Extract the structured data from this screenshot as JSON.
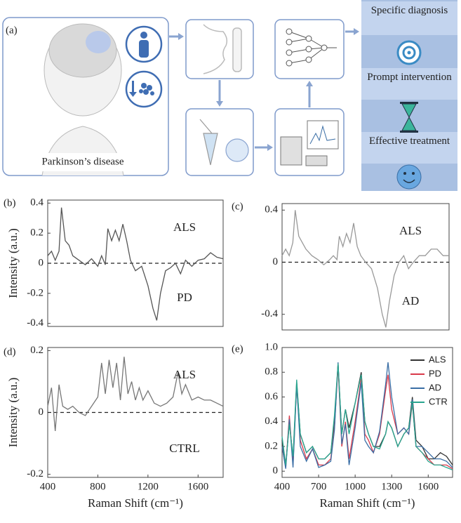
{
  "panel_a": {
    "label": "(a)",
    "caption": "Parkinson’s disease",
    "outcomes": [
      "Specific diagnosis",
      "Prompt intervention",
      "Effective treatment"
    ]
  },
  "chart_data": [
    {
      "type": "line",
      "panel": "(b)",
      "ylabel": "Intensity (a.u.)",
      "annotations": [
        "ALS",
        "PD"
      ],
      "xlim": [
        400,
        1800
      ],
      "ylim": [
        -0.42,
        0.42
      ],
      "yticks": [
        0.4,
        0.2,
        0,
        -0.2,
        -0.4
      ],
      "reference_line": 0,
      "color": "#555555",
      "x": [
        400,
        430,
        460,
        490,
        510,
        540,
        570,
        600,
        650,
        700,
        750,
        800,
        830,
        860,
        880,
        910,
        940,
        970,
        1000,
        1030,
        1060,
        1100,
        1150,
        1200,
        1240,
        1270,
        1300,
        1340,
        1380,
        1420,
        1460,
        1500,
        1550,
        1600,
        1650,
        1700,
        1750,
        1800
      ],
      "values": [
        0.05,
        0.08,
        0.02,
        0.08,
        0.37,
        0.15,
        0.12,
        0.05,
        0.02,
        -0.01,
        0.03,
        -0.02,
        0.05,
        -0.01,
        0.23,
        0.15,
        0.22,
        0.15,
        0.26,
        0.15,
        0.02,
        -0.05,
        -0.02,
        -0.15,
        -0.3,
        -0.38,
        -0.2,
        -0.05,
        -0.03,
        0,
        -0.07,
        0.02,
        -0.02,
        0.02,
        0.03,
        0.07,
        0.04,
        0.03
      ]
    },
    {
      "type": "line",
      "panel": "(c)",
      "annotations": [
        "ALS",
        "AD"
      ],
      "xlim": [
        400,
        1800
      ],
      "ylim": [
        -0.52,
        0.45
      ],
      "yticks": [
        0.4,
        0,
        -0.4
      ],
      "reference_line": 0,
      "color": "#999999",
      "x": [
        400,
        430,
        460,
        490,
        510,
        540,
        570,
        600,
        650,
        700,
        750,
        800,
        830,
        860,
        880,
        910,
        940,
        970,
        1000,
        1030,
        1060,
        1100,
        1150,
        1200,
        1240,
        1270,
        1300,
        1340,
        1380,
        1420,
        1460,
        1500,
        1550,
        1600,
        1650,
        1700,
        1750,
        1800
      ],
      "values": [
        0.05,
        0.1,
        0.05,
        0.15,
        0.4,
        0.2,
        0.15,
        0.1,
        0.05,
        0.02,
        -0.02,
        0.02,
        0.05,
        0.02,
        0.2,
        0.12,
        0.22,
        0.15,
        0.3,
        0.12,
        0.05,
        0,
        -0.05,
        -0.2,
        -0.4,
        -0.5,
        -0.3,
        -0.1,
        0,
        0.05,
        -0.05,
        0,
        0.05,
        0.05,
        0.1,
        0.1,
        0.05,
        0.05
      ]
    },
    {
      "type": "line",
      "panel": "(d)",
      "ylabel": "Intensity (a.u.)",
      "xlabel": "Raman Shift (cm⁻¹)",
      "annotations": [
        "ALS",
        "CTRL"
      ],
      "xlim": [
        400,
        1800
      ],
      "ylim": [
        -0.21,
        0.21
      ],
      "yticks": [
        0.2,
        0,
        -0.2
      ],
      "xticks": [
        400,
        800,
        1200,
        1600
      ],
      "reference_line": 0,
      "color": "#777777",
      "x": [
        400,
        430,
        460,
        490,
        520,
        560,
        600,
        650,
        700,
        750,
        800,
        830,
        860,
        890,
        920,
        950,
        980,
        1010,
        1040,
        1070,
        1100,
        1130,
        1160,
        1200,
        1250,
        1300,
        1350,
        1400,
        1440,
        1470,
        1500,
        1550,
        1600,
        1650,
        1700,
        1750,
        1800
      ],
      "values": [
        0.02,
        0.08,
        -0.06,
        0.09,
        0.02,
        0.01,
        0.02,
        0,
        -0.01,
        0.02,
        0.05,
        0.16,
        0.06,
        0.17,
        0.08,
        0.16,
        0.04,
        0.18,
        0.06,
        0.1,
        0.04,
        0.08,
        0.04,
        0.07,
        0.03,
        0.02,
        0.03,
        0.05,
        0.13,
        0.06,
        0.09,
        0.04,
        0.05,
        0.04,
        0.04,
        0.03,
        0.02
      ]
    },
    {
      "type": "line",
      "panel": "(e)",
      "xlabel": "Raman Shift (cm⁻¹)",
      "legend": "upper right",
      "xlim": [
        400,
        1800
      ],
      "ylim": [
        -0.05,
        1.0
      ],
      "yticks": [
        0,
        0.2,
        0.4,
        0.6,
        0.8,
        {
          "value": 1,
          "label": "1.0"
        }
      ],
      "xticks": [
        400,
        700,
        1000,
        1300,
        1600
      ],
      "x": [
        400,
        430,
        460,
        490,
        520,
        550,
        600,
        650,
        700,
        750,
        800,
        830,
        860,
        890,
        920,
        950,
        1000,
        1050,
        1080,
        1110,
        1150,
        1200,
        1250,
        1270,
        1300,
        1350,
        1400,
        1440,
        1470,
        1500,
        1550,
        1600,
        1650,
        1700,
        1750,
        1800
      ],
      "series": [
        {
          "name": "ALS",
          "color": "#333333",
          "values": [
            0.25,
            0.05,
            0.4,
            0.1,
            0.72,
            0.3,
            0.15,
            0.2,
            0.1,
            0.1,
            0.15,
            0.4,
            0.87,
            0.3,
            0.5,
            0.35,
            0.55,
            0.8,
            0.4,
            0.3,
            0.2,
            0.2,
            0.3,
            0.4,
            0.35,
            0.2,
            0.3,
            0.35,
            0.6,
            0.25,
            0.2,
            0.1,
            0.1,
            0.15,
            0.12,
            0.05
          ]
        },
        {
          "name": "PD",
          "color": "#d9394a",
          "values": [
            0.2,
            0.03,
            0.45,
            0.05,
            0.7,
            0.25,
            0.1,
            0.18,
            0.05,
            0.05,
            0.1,
            0.35,
            0.85,
            0.2,
            0.4,
            0.1,
            0.4,
            0.75,
            0.3,
            0.25,
            0.15,
            0.3,
            0.65,
            0.78,
            0.5,
            0.3,
            0.35,
            0.3,
            0.55,
            0.2,
            0.15,
            0.1,
            0.05,
            0.05,
            0.05,
            0.02
          ]
        },
        {
          "name": "AD",
          "color": "#3a6ea5",
          "values": [
            0.2,
            0.02,
            0.42,
            0.03,
            0.7,
            0.2,
            0.08,
            0.18,
            0.03,
            0.05,
            0.08,
            0.33,
            0.88,
            0.22,
            0.38,
            0.05,
            0.35,
            0.72,
            0.25,
            0.2,
            0.15,
            0.32,
            0.7,
            0.88,
            0.6,
            0.3,
            0.35,
            0.3,
            0.58,
            0.2,
            0.2,
            0.15,
            0.1,
            0.1,
            0.08,
            0.03
          ]
        },
        {
          "name": "CTR",
          "color": "#2aa58f",
          "values": [
            0.28,
            0.05,
            0.38,
            0.12,
            0.74,
            0.3,
            0.15,
            0.2,
            0.1,
            0.1,
            0.15,
            0.45,
            0.87,
            0.3,
            0.5,
            0.3,
            0.55,
            0.78,
            0.4,
            0.3,
            0.2,
            0.18,
            0.3,
            0.4,
            0.35,
            0.2,
            0.3,
            0.35,
            0.55,
            0.2,
            0.15,
            0.08,
            0.05,
            0.05,
            0.03,
            0.01
          ]
        }
      ]
    }
  ]
}
